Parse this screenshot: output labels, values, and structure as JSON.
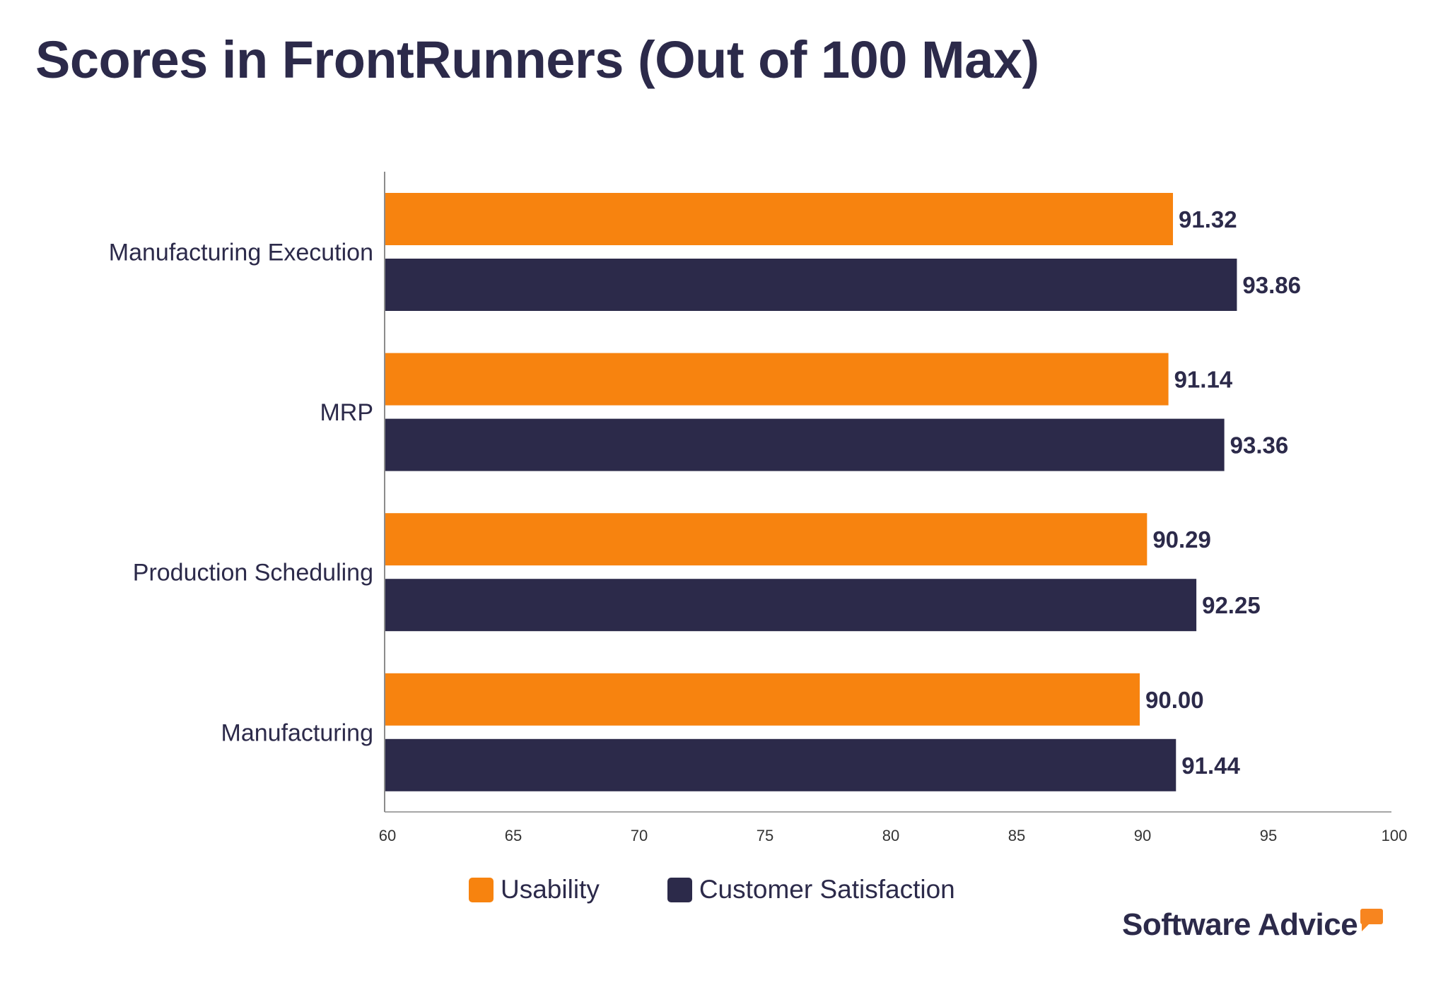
{
  "title": "Scores in FrontRunners (Out of 100 Max)",
  "chart_data": {
    "type": "bar",
    "orientation": "horizontal",
    "title": "Scores in FrontRunners (Out of 100 Max)",
    "categories": [
      "Manufacturing Execution",
      "MRP",
      "Production Scheduling",
      "Manufacturing"
    ],
    "series": [
      {
        "name": "Usability",
        "color": "#f7830f",
        "values": [
          91.32,
          91.14,
          90.29,
          90.0
        ],
        "labels": [
          "91.32",
          "91.14",
          "90.29",
          "90.00"
        ]
      },
      {
        "name": "Customer Satisfaction",
        "color": "#2c2a4a",
        "values": [
          93.86,
          93.36,
          92.25,
          91.44
        ],
        "labels": [
          "93.86",
          "93.36",
          "92.25",
          "91.44"
        ]
      }
    ],
    "xlim": [
      60,
      100
    ],
    "xticks": [
      "60",
      "65",
      "70",
      "75",
      "80",
      "85",
      "90",
      "95",
      "100"
    ],
    "grid": false,
    "legend": "bottom"
  },
  "legend": {
    "items": [
      "Usability",
      "Customer Satisfaction"
    ]
  },
  "logo": {
    "text": "Software Advice"
  }
}
